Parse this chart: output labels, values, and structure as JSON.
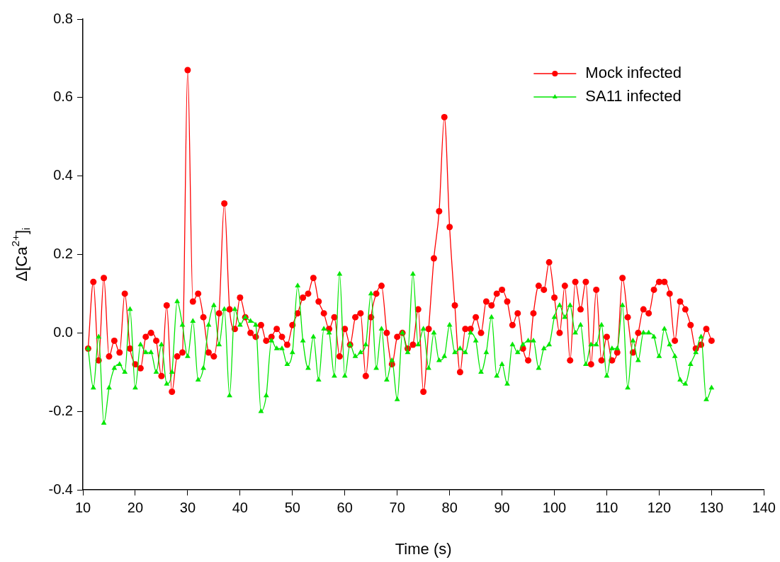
{
  "chart_data": {
    "type": "line",
    "xlabel": "Time (s)",
    "ylabel": "Δ[Ca$^{2+}$]$_{i}$",
    "x": [
      11,
      12,
      13,
      14,
      15,
      16,
      17,
      18,
      19,
      20,
      21,
      22,
      23,
      24,
      25,
      26,
      27,
      28,
      29,
      30,
      31,
      32,
      33,
      34,
      35,
      36,
      37,
      38,
      39,
      40,
      41,
      42,
      43,
      44,
      45,
      46,
      47,
      48,
      49,
      50,
      51,
      52,
      53,
      54,
      55,
      56,
      57,
      58,
      59,
      60,
      61,
      62,
      63,
      64,
      65,
      66,
      67,
      68,
      69,
      70,
      71,
      72,
      73,
      74,
      75,
      76,
      77,
      78,
      79,
      80,
      81,
      82,
      83,
      84,
      85,
      86,
      87,
      88,
      89,
      90,
      91,
      92,
      93,
      94,
      95,
      96,
      97,
      98,
      99,
      100,
      101,
      102,
      103,
      104,
      105,
      106,
      107,
      108,
      109,
      110,
      111,
      112,
      113,
      114,
      115,
      116,
      117,
      118,
      119,
      120,
      121,
      122,
      123,
      124,
      125,
      126,
      127,
      128,
      129,
      130
    ],
    "series": [
      {
        "name": "Mock infected",
        "color": "#ff0000",
        "marker": "circle",
        "values": [
          -0.04,
          0.13,
          -0.07,
          0.14,
          -0.06,
          -0.02,
          -0.05,
          0.1,
          -0.04,
          -0.08,
          -0.09,
          -0.01,
          0.0,
          -0.02,
          -0.11,
          0.07,
          -0.15,
          -0.06,
          -0.05,
          0.67,
          0.08,
          0.1,
          0.04,
          -0.05,
          -0.06,
          0.05,
          0.33,
          0.06,
          0.01,
          0.09,
          0.04,
          0.0,
          -0.01,
          0.02,
          -0.02,
          -0.01,
          0.01,
          -0.01,
          -0.03,
          0.02,
          0.05,
          0.09,
          0.1,
          0.14,
          0.08,
          0.05,
          0.01,
          0.04,
          -0.06,
          0.01,
          -0.03,
          0.04,
          0.05,
          -0.11,
          0.04,
          0.1,
          0.12,
          0.0,
          -0.08,
          -0.01,
          0.0,
          -0.04,
          -0.03,
          0.06,
          -0.15,
          0.01,
          0.19,
          0.31,
          0.55,
          0.27,
          0.07,
          -0.1,
          0.01,
          0.01,
          0.04,
          0.0,
          0.08,
          0.07,
          0.1,
          0.11,
          0.08,
          0.02,
          0.05,
          -0.04,
          -0.07,
          0.05,
          0.12,
          0.11,
          0.18,
          0.09,
          0.0,
          0.12,
          -0.07,
          0.13,
          0.06,
          0.13,
          -0.08,
          0.11,
          -0.07,
          -0.01,
          -0.07,
          -0.05,
          0.14,
          0.04,
          -0.05,
          0.0,
          0.06,
          0.05,
          0.11,
          0.13,
          0.13,
          0.1,
          -0.02,
          0.08,
          0.06,
          0.02,
          -0.04,
          -0.03,
          0.01,
          -0.02
        ]
      },
      {
        "name": "SA11 infected",
        "color": "#00e600",
        "marker": "triangle",
        "values": [
          -0.04,
          -0.14,
          -0.01,
          -0.23,
          -0.14,
          -0.09,
          -0.08,
          -0.1,
          0.06,
          -0.14,
          -0.03,
          -0.05,
          -0.05,
          -0.1,
          -0.03,
          -0.13,
          -0.1,
          0.08,
          0.02,
          -0.06,
          0.03,
          -0.12,
          -0.09,
          0.02,
          0.07,
          -0.03,
          0.06,
          -0.16,
          0.06,
          0.02,
          0.04,
          0.03,
          0.02,
          -0.2,
          -0.16,
          -0.02,
          -0.04,
          -0.04,
          -0.08,
          -0.05,
          0.12,
          -0.02,
          -0.09,
          -0.01,
          -0.12,
          0.01,
          0.0,
          -0.11,
          0.15,
          -0.11,
          -0.03,
          -0.06,
          -0.05,
          -0.03,
          0.1,
          -0.09,
          0.01,
          -0.12,
          -0.07,
          -0.17,
          0.0,
          -0.05,
          0.15,
          -0.03,
          0.01,
          -0.09,
          0.0,
          -0.07,
          -0.06,
          0.02,
          -0.05,
          -0.04,
          -0.05,
          0.0,
          -0.02,
          -0.1,
          -0.05,
          0.04,
          -0.11,
          -0.08,
          -0.13,
          -0.03,
          -0.05,
          -0.03,
          -0.02,
          -0.02,
          -0.09,
          -0.04,
          -0.03,
          0.04,
          0.07,
          0.04,
          0.07,
          0.0,
          0.02,
          -0.08,
          -0.03,
          -0.03,
          0.02,
          -0.11,
          -0.04,
          -0.04,
          0.07,
          -0.14,
          -0.02,
          -0.07,
          0.0,
          0.0,
          -0.01,
          -0.06,
          0.01,
          -0.03,
          -0.06,
          -0.12,
          -0.13,
          -0.08,
          -0.05,
          -0.01,
          -0.17,
          -0.14
        ]
      }
    ],
    "xlim": [
      10,
      140
    ],
    "xticks": [
      10,
      20,
      30,
      40,
      50,
      60,
      70,
      80,
      90,
      100,
      110,
      120,
      130,
      140
    ],
    "ylim": [
      -0.4,
      0.8
    ],
    "yticks": [
      -0.4,
      -0.2,
      {
        "value": 0,
        "label": "0.0"
      },
      0.2,
      0.4,
      0.6,
      0.8
    ],
    "grid": false,
    "legend": "top right"
  }
}
